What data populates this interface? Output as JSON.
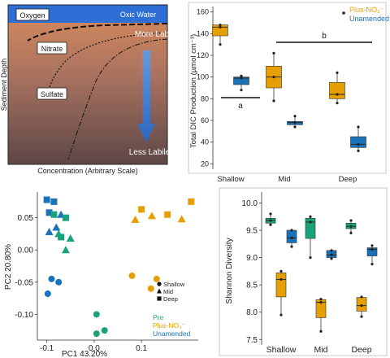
{
  "panel_a": {
    "labels": {
      "oxygen": "Oxygen",
      "oxic_water": "Oxic Water",
      "nitrate": "Nitrate",
      "sulfate": "Sulfate",
      "more_labile": "More Labile",
      "less_labile": "Less Labile"
    },
    "ylabel": "Sediment Depth",
    "xlabel": "Concentration (Arbitrary Scale)"
  },
  "chart_data": [
    {
      "type": "box",
      "ylabel": "Total DIC Production (µmol cm⁻³)",
      "categories": [
        "Shallow",
        "Mid",
        "Deep"
      ],
      "ylim": [
        15,
        165
      ],
      "yticks": [
        20,
        40,
        60,
        80,
        100,
        120,
        140,
        160
      ],
      "legend": [
        "Plus-NO₃⁻",
        "Unamended"
      ],
      "colors": {
        "Plus-NO₃⁻": "#e69f00",
        "Unamended": "#1a73b8"
      },
      "series": [
        {
          "name": "Plus-NO₃⁻",
          "boxes": [
            {
              "category": "Shallow",
              "min": 130,
              "q1": 138,
              "median": 146,
              "q3": 148,
              "max": 148,
              "mean": 146
            },
            {
              "category": "Mid",
              "min": 78,
              "q1": 90,
              "median": 100,
              "q3": 110,
              "max": 122,
              "mean": 100
            },
            {
              "category": "Deep",
              "min": 76,
              "q1": 80,
              "median": 84,
              "q3": 95,
              "max": 104,
              "mean": 84
            }
          ]
        },
        {
          "name": "Unamended",
          "boxes": [
            {
              "category": "Shallow",
              "min": 88,
              "q1": 93,
              "median": 99,
              "q3": 100,
              "max": 101,
              "mean": 99
            },
            {
              "category": "Mid",
              "min": 54,
              "q1": 56,
              "median": 58,
              "q3": 59,
              "max": 64,
              "mean": 58
            },
            {
              "category": "Deep",
              "min": 32,
              "q1": 35,
              "median": 38,
              "q3": 45,
              "max": 54,
              "mean": 38
            }
          ]
        }
      ],
      "annotations": [
        {
          "text": "a",
          "from": "Shallow"
        },
        {
          "text": "b",
          "from": "Mid",
          "to": "Deep"
        }
      ]
    },
    {
      "type": "scatter",
      "xlabel": "PC1 43.20%",
      "ylabel": "PC2 20.80%",
      "xlim": [
        -0.12,
        0.22
      ],
      "ylim": [
        -0.14,
        0.09
      ],
      "xticks": [
        -0.1,
        0.0,
        0.1
      ],
      "yticks": [
        -0.1,
        -0.05,
        0.0,
        0.05
      ],
      "shape_legend": [
        "Shallow",
        "Mid",
        "Deep"
      ],
      "color_legend": [
        "Pre",
        "Plus-NO₃⁻",
        "Unamended"
      ],
      "colors": {
        "Pre": "#1aa37a",
        "Plus-NO₃⁻": "#e69f00",
        "Unamended": "#1a73b8"
      },
      "points": [
        {
          "x": -0.1,
          "y": 0.078,
          "shape": "Deep",
          "group": "Unamended"
        },
        {
          "x": -0.085,
          "y": 0.075,
          "shape": "Deep",
          "group": "Unamended"
        },
        {
          "x": -0.095,
          "y": 0.058,
          "shape": "Deep",
          "group": "Unamended"
        },
        {
          "x": -0.07,
          "y": 0.055,
          "shape": "Mid",
          "group": "Unamended"
        },
        {
          "x": -0.095,
          "y": 0.028,
          "shape": "Mid",
          "group": "Unamended"
        },
        {
          "x": -0.08,
          "y": 0.035,
          "shape": "Mid",
          "group": "Unamended"
        },
        {
          "x": -0.09,
          "y": -0.045,
          "shape": "Shallow",
          "group": "Unamended"
        },
        {
          "x": -0.098,
          "y": -0.068,
          "shape": "Shallow",
          "group": "Unamended"
        },
        {
          "x": -0.075,
          "y": -0.05,
          "shape": "Shallow",
          "group": "Unamended"
        },
        {
          "x": -0.085,
          "y": 0.055,
          "shape": "Deep",
          "group": "Pre"
        },
        {
          "x": -0.06,
          "y": 0.05,
          "shape": "Deep",
          "group": "Pre"
        },
        {
          "x": -0.07,
          "y": 0.02,
          "shape": "Deep",
          "group": "Pre"
        },
        {
          "x": -0.075,
          "y": 0.025,
          "shape": "Mid",
          "group": "Pre"
        },
        {
          "x": -0.05,
          "y": 0.018,
          "shape": "Mid",
          "group": "Pre"
        },
        {
          "x": -0.06,
          "y": 0.0,
          "shape": "Mid",
          "group": "Pre"
        },
        {
          "x": 0.005,
          "y": -0.1,
          "shape": "Shallow",
          "group": "Pre"
        },
        {
          "x": 0.005,
          "y": -0.13,
          "shape": "Shallow",
          "group": "Pre"
        },
        {
          "x": 0.022,
          "y": -0.125,
          "shape": "Shallow",
          "group": "Pre"
        },
        {
          "x": 0.205,
          "y": 0.075,
          "shape": "Deep",
          "group": "Plus-NO₃⁻"
        },
        {
          "x": 0.1,
          "y": 0.063,
          "shape": "Deep",
          "group": "Plus-NO₃⁻"
        },
        {
          "x": 0.155,
          "y": 0.055,
          "shape": "Deep",
          "group": "Plus-NO₃⁻"
        },
        {
          "x": 0.087,
          "y": 0.047,
          "shape": "Mid",
          "group": "Plus-NO₃⁻"
        },
        {
          "x": 0.122,
          "y": 0.053,
          "shape": "Mid",
          "group": "Plus-NO₃⁻"
        },
        {
          "x": 0.185,
          "y": 0.048,
          "shape": "Mid",
          "group": "Plus-NO₃⁻"
        },
        {
          "x": 0.08,
          "y": -0.04,
          "shape": "Shallow",
          "group": "Plus-NO₃⁻"
        },
        {
          "x": 0.12,
          "y": -0.06,
          "shape": "Shallow",
          "group": "Plus-NO₃⁻"
        },
        {
          "x": 0.132,
          "y": -0.045,
          "shape": "Shallow",
          "group": "Plus-NO₃⁻"
        }
      ]
    },
    {
      "type": "box",
      "ylabel": "Shannon Diversity",
      "categories": [
        "Shallow",
        "Mid",
        "Deep"
      ],
      "ylim": [
        7.4,
        10.2
      ],
      "yticks": [
        7.5,
        8.0,
        8.5,
        9.0,
        9.5,
        10.0
      ],
      "colors": {
        "Pre": "#1aa37a",
        "Unamended": "#1a73b8",
        "Plus-NO₃⁻": "#e69f00"
      },
      "series": [
        {
          "name": "Pre",
          "boxes": [
            {
              "category": "Shallow",
              "min": 9.6,
              "q1": 9.63,
              "median": 9.68,
              "q3": 9.72,
              "max": 9.8,
              "mean": 9.68
            },
            {
              "category": "Mid",
              "min": 9.0,
              "q1": 9.35,
              "median": 9.65,
              "q3": 9.72,
              "max": 9.75,
              "mean": 9.65
            },
            {
              "category": "Deep",
              "min": 9.45,
              "q1": 9.53,
              "median": 9.57,
              "q3": 9.63,
              "max": 9.68,
              "mean": 9.57
            }
          ]
        },
        {
          "name": "Unamended",
          "boxes": [
            {
              "category": "Shallow",
              "min": 9.2,
              "q1": 9.27,
              "median": 9.36,
              "q3": 9.5,
              "max": 9.5,
              "mean": 9.36
            },
            {
              "category": "Mid",
              "min": 8.98,
              "q1": 9.0,
              "median": 9.05,
              "q3": 9.13,
              "max": 9.13,
              "mean": 9.05
            },
            {
              "category": "Deep",
              "min": 8.88,
              "q1": 9.03,
              "median": 9.15,
              "q3": 9.18,
              "max": 9.22,
              "mean": 9.15
            }
          ]
        },
        {
          "name": "Plus-NO₃⁻",
          "boxes": [
            {
              "category": "Shallow",
              "min": 7.95,
              "q1": 8.28,
              "median": 8.6,
              "q3": 8.72,
              "max": 8.75,
              "mean": 8.6
            },
            {
              "category": "Mid",
              "min": 7.65,
              "q1": 7.9,
              "median": 8.18,
              "q3": 8.23,
              "max": 8.24,
              "mean": 8.18
            },
            {
              "category": "Deep",
              "min": 7.92,
              "q1": 8.02,
              "median": 8.12,
              "q3": 8.27,
              "max": 8.28,
              "mean": 8.12
            }
          ]
        }
      ]
    }
  ]
}
